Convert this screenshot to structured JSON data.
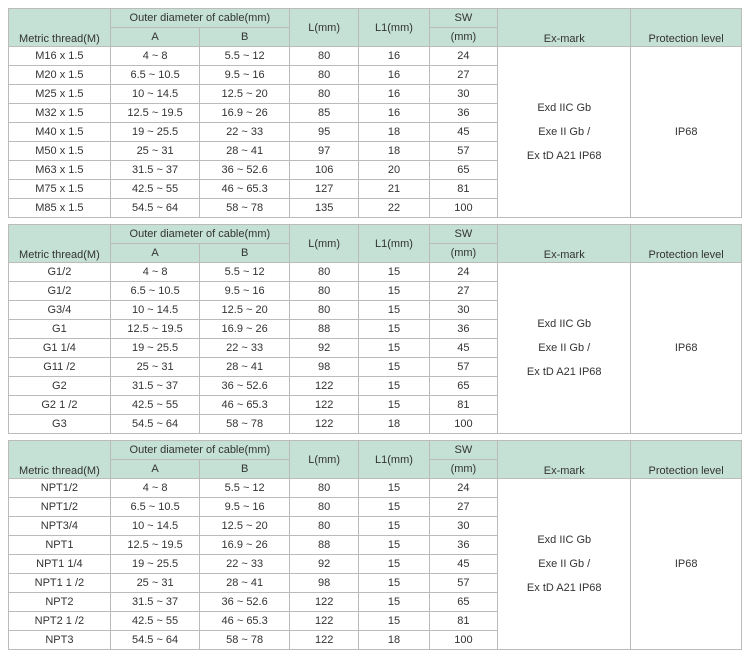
{
  "headers": {
    "thread": "Metric thread(M)",
    "outer": "Outer diameter of cable(mm)",
    "a": "A",
    "b": "B",
    "l": "L(mm)",
    "l1": "L1(mm)",
    "sw_top": "SW",
    "sw_bot": "(mm)",
    "ex": "Ex-mark",
    "prot": "Protection level"
  },
  "ex_lines": [
    "Exd IIC Gb",
    "Exe II Gb /",
    "Ex tD A21 IP68"
  ],
  "protection": "IP68",
  "tables": [
    {
      "rows": [
        {
          "t": "M16 x 1.5",
          "a": "4 ~ 8",
          "b": "5.5 ~ 12",
          "l": "80",
          "l1": "16",
          "sw": "24"
        },
        {
          "t": "M20 x 1.5",
          "a": "6.5 ~ 10.5",
          "b": "9.5 ~ 16",
          "l": "80",
          "l1": "16",
          "sw": "27"
        },
        {
          "t": "M25 x 1.5",
          "a": "10 ~ 14.5",
          "b": "12.5 ~ 20",
          "l": "80",
          "l1": "16",
          "sw": "30"
        },
        {
          "t": "M32 x 1.5",
          "a": "12.5 ~ 19.5",
          "b": "16.9 ~ 26",
          "l": "85",
          "l1": "16",
          "sw": "36"
        },
        {
          "t": "M40 x 1.5",
          "a": "19 ~ 25.5",
          "b": "22 ~ 33",
          "l": "95",
          "l1": "18",
          "sw": "45"
        },
        {
          "t": "M50 x 1.5",
          "a": "25 ~ 31",
          "b": "28 ~ 41",
          "l": "97",
          "l1": "18",
          "sw": "57"
        },
        {
          "t": "M63 x 1.5",
          "a": "31.5 ~ 37",
          "b": "36 ~ 52.6",
          "l": "106",
          "l1": "20",
          "sw": "65"
        },
        {
          "t": "M75 x 1.5",
          "a": "42.5 ~ 55",
          "b": "46 ~ 65.3",
          "l": "127",
          "l1": "21",
          "sw": "81"
        },
        {
          "t": "M85 x 1.5",
          "a": "54.5 ~ 64",
          "b": "58 ~ 78",
          "l": "135",
          "l1": "22",
          "sw": "100"
        }
      ]
    },
    {
      "rows": [
        {
          "t": "G1/2",
          "a": "4 ~ 8",
          "b": "5.5 ~ 12",
          "l": "80",
          "l1": "15",
          "sw": "24"
        },
        {
          "t": "G1/2",
          "a": "6.5 ~ 10.5",
          "b": "9.5 ~ 16",
          "l": "80",
          "l1": "15",
          "sw": "27"
        },
        {
          "t": "G3/4",
          "a": "10 ~ 14.5",
          "b": "12.5 ~ 20",
          "l": "80",
          "l1": "15",
          "sw": "30"
        },
        {
          "t": "G1",
          "a": "12.5 ~ 19.5",
          "b": "16.9 ~ 26",
          "l": "88",
          "l1": "15",
          "sw": "36"
        },
        {
          "t": "G1 1/4",
          "a": "19 ~ 25.5",
          "b": "22 ~ 33",
          "l": "92",
          "l1": "15",
          "sw": "45"
        },
        {
          "t": "G11 /2",
          "a": "25 ~ 31",
          "b": "28 ~ 41",
          "l": "98",
          "l1": "15",
          "sw": "57"
        },
        {
          "t": "G2",
          "a": "31.5 ~ 37",
          "b": "36 ~ 52.6",
          "l": "122",
          "l1": "15",
          "sw": "65"
        },
        {
          "t": "G2 1 /2",
          "a": "42.5 ~ 55",
          "b": "46 ~ 65.3",
          "l": "122",
          "l1": "15",
          "sw": "81"
        },
        {
          "t": "G3",
          "a": "54.5 ~ 64",
          "b": "58 ~ 78",
          "l": "122",
          "l1": "18",
          "sw": "100"
        }
      ]
    },
    {
      "rows": [
        {
          "t": "NPT1/2",
          "a": "4 ~ 8",
          "b": "5.5 ~ 12",
          "l": "80",
          "l1": "15",
          "sw": "24"
        },
        {
          "t": "NPT1/2",
          "a": "6.5 ~ 10.5",
          "b": "9.5 ~ 16",
          "l": "80",
          "l1": "15",
          "sw": "27"
        },
        {
          "t": "NPT3/4",
          "a": "10 ~ 14.5",
          "b": "12.5 ~ 20",
          "l": "80",
          "l1": "15",
          "sw": "30"
        },
        {
          "t": "NPT1",
          "a": "12.5 ~ 19.5",
          "b": "16.9 ~ 26",
          "l": "88",
          "l1": "15",
          "sw": "36"
        },
        {
          "t": "NPT1 1/4",
          "a": "19 ~ 25.5",
          "b": "22 ~ 33",
          "l": "92",
          "l1": "15",
          "sw": "45"
        },
        {
          "t": "NPT1 1 /2",
          "a": "25 ~ 31",
          "b": "28 ~ 41",
          "l": "98",
          "l1": "15",
          "sw": "57"
        },
        {
          "t": "NPT2",
          "a": "31.5 ~ 37",
          "b": "36 ~ 52.6",
          "l": "122",
          "l1": "15",
          "sw": "65"
        },
        {
          "t": "NPT2 1 /2",
          "a": "42.5 ~ 55",
          "b": "46 ~ 65.3",
          "l": "122",
          "l1": "15",
          "sw": "81"
        },
        {
          "t": "NPT3",
          "a": "54.5 ~ 64",
          "b": "58 ~ 78",
          "l": "122",
          "l1": "18",
          "sw": "100"
        }
      ]
    }
  ]
}
